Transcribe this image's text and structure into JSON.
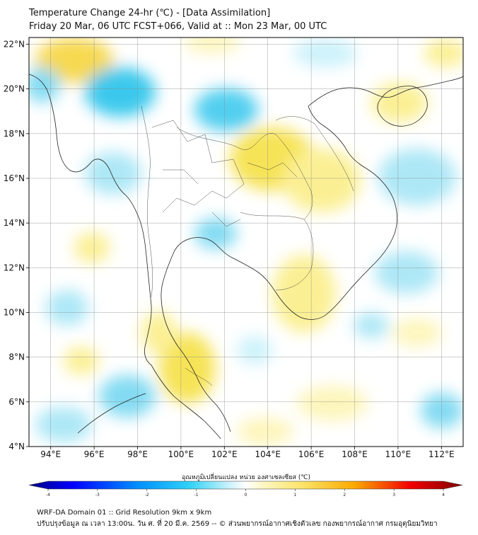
{
  "title": {
    "line1": "Temperature Change 24-hr (℃) - [Data Assimilation]",
    "line2": "Friday 20 Mar, 06 UTC FCST+066, Valid at :: Mon 23 Mar, 00 UTC"
  },
  "map": {
    "lon_range": [
      93,
      113
    ],
    "lat_range": [
      4,
      22.3
    ],
    "lat_ticks": [
      {
        "value": 22,
        "label": "22°N"
      },
      {
        "value": 20,
        "label": "20°N"
      },
      {
        "value": 18,
        "label": "18°N"
      },
      {
        "value": 16,
        "label": "16°N"
      },
      {
        "value": 14,
        "label": "14°N"
      },
      {
        "value": 12,
        "label": "12°N"
      },
      {
        "value": 10,
        "label": "10°N"
      },
      {
        "value": 8,
        "label": "8°N"
      },
      {
        "value": 6,
        "label": "6°N"
      },
      {
        "value": 4,
        "label": "4°N"
      }
    ],
    "lon_ticks": [
      {
        "value": 94,
        "label": "94°E"
      },
      {
        "value": 96,
        "label": "96°E"
      },
      {
        "value": 98,
        "label": "98°E"
      },
      {
        "value": 100,
        "label": "100°E"
      },
      {
        "value": 102,
        "label": "102°E"
      },
      {
        "value": 104,
        "label": "104°E"
      },
      {
        "value": 106,
        "label": "106°E"
      },
      {
        "value": 108,
        "label": "108°E"
      },
      {
        "value": 110,
        "label": "110°E"
      },
      {
        "value": 112,
        "label": "112°E"
      }
    ],
    "grid": true,
    "colors": {
      "cold": "#33c6ec",
      "cool": "#a9e6f6",
      "warm": "#fbef8f",
      "hot": "#f6d83a",
      "coast": "#222222"
    }
  },
  "colorbar": {
    "title": "อุณหภูมิเปลี่ยนแปลง หน่วย องศาเซลเซียส (℃)",
    "min": -4,
    "max": 4,
    "ticks": [
      "-4",
      "-3",
      "-2",
      "-1",
      "0",
      "1",
      "2",
      "3",
      "4"
    ],
    "extend": "both"
  },
  "footer": {
    "line1": "WRF-DA Domain 01 :: Grid Resolution 9km x 9km",
    "line2": "ปรับปรุงข้อมูล ณ เวลา 13:00น. วัน ศ. ที่ 20 มี.ค. 2569 -- © ส่วนพยากรณ์อากาศเชิงตัวเลข กองพยากรณ์อากาศ กรมอุตุนิยมวิทยา"
  }
}
